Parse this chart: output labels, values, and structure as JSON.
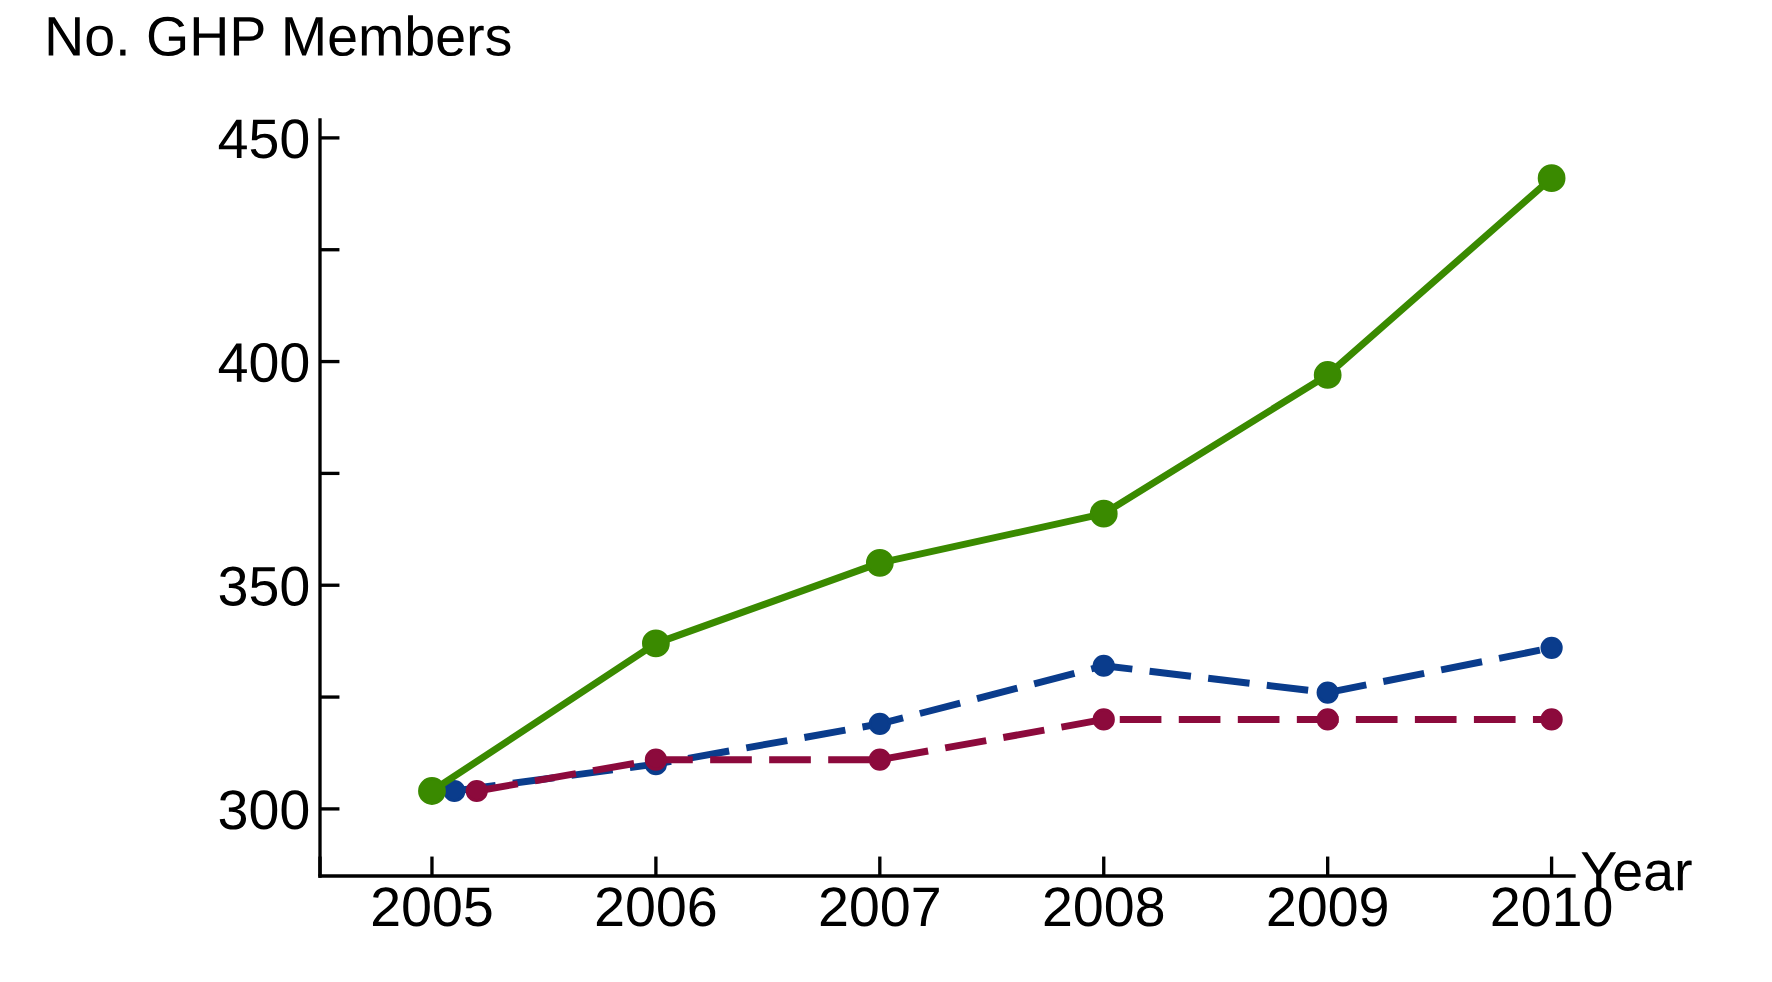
{
  "chart_data": {
    "type": "line",
    "xlabel": "Year",
    "ylabel": "No. GHP Members",
    "marker": "circle",
    "grid": false,
    "legend": false,
    "xlim": [
      2004.5,
      2010.1
    ],
    "xticks": [
      {
        "value": 2004.5,
        "label": null
      },
      2005,
      2006,
      2007,
      2008,
      2009,
      2010
    ],
    "ylim": [
      285,
      454
    ],
    "yticks": [
      300,
      {
        "value": 325,
        "label": null
      },
      350,
      {
        "value": 375,
        "label": null
      },
      400,
      {
        "value": 425,
        "label": null
      },
      450
    ],
    "series": [
      {
        "color": "#3a8a00",
        "line_style": "solid",
        "x": [
          2005,
          2006,
          2007,
          2008,
          2009,
          2010
        ],
        "values": [
          304,
          337,
          355,
          366,
          397,
          441
        ]
      },
      {
        "color": "#0a3c8c",
        "line_style": "dashed",
        "x": [
          2005.1,
          2006,
          2007,
          2008,
          2009,
          2010
        ],
        "values": [
          304,
          310,
          319,
          332,
          326,
          336
        ]
      },
      {
        "color": "#8c0a3c",
        "line_style": "dashed",
        "x": [
          2005.2,
          2006,
          2007,
          2008,
          2009,
          2010
        ],
        "values": [
          304,
          311,
          311,
          320,
          320,
          320
        ]
      }
    ]
  }
}
